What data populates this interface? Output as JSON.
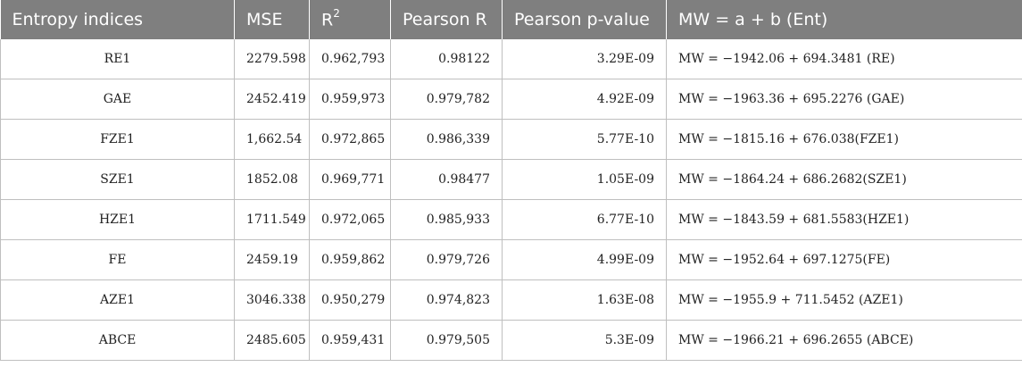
{
  "table": {
    "headers": {
      "entropy": "Entropy indices",
      "mse": "MSE",
      "r2_base": "R",
      "r2_sup": "2",
      "pearson_r": "Pearson R",
      "pearson_p": "Pearson p-value",
      "model": "MW = a + b (Ent)"
    },
    "rows": [
      {
        "entropy": "RE1",
        "mse": "2279.598",
        "r2": "0.962,793",
        "pearson_r": "0.98122",
        "pearson_p": "3.29E-09",
        "model": "MW = −1942.06 + 694.3481 (RE)"
      },
      {
        "entropy": "GAE",
        "mse": "2452.419",
        "r2": "0.959,973",
        "pearson_r": "0.979,782",
        "pearson_p": "4.92E-09",
        "model": "MW = −1963.36 + 695.2276 (GAE)"
      },
      {
        "entropy": "FZE1",
        "mse": "1,662.54",
        "r2": "0.972,865",
        "pearson_r": "0.986,339",
        "pearson_p": "5.77E-10",
        "model": "MW = −1815.16 + 676.038(FZE1)"
      },
      {
        "entropy": "SZE1",
        "mse": "1852.08",
        "r2": "0.969,771",
        "pearson_r": "0.98477",
        "pearson_p": "1.05E-09",
        "model": "MW = −1864.24 + 686.2682(SZE1)"
      },
      {
        "entropy": "HZE1",
        "mse": "1711.549",
        "r2": "0.972,065",
        "pearson_r": "0.985,933",
        "pearson_p": "6.77E-10",
        "model": "MW = −1843.59 + 681.5583(HZE1)"
      },
      {
        "entropy": "FE",
        "mse": "2459.19",
        "r2": "0.959,862",
        "pearson_r": "0.979,726",
        "pearson_p": "4.99E-09",
        "model": "MW = −1952.64 + 697.1275(FE)"
      },
      {
        "entropy": "AZE1",
        "mse": "3046.338",
        "r2": "0.950,279",
        "pearson_r": "0.974,823",
        "pearson_p": "1.63E-08",
        "model": "MW = −1955.9 + 711.5452 (AZE1)"
      },
      {
        "entropy": "ABCE",
        "mse": "2485.605",
        "r2": "0.959,431",
        "pearson_r": "0.979,505",
        "pearson_p": "5.3E-09",
        "model": "MW = −1966.21 + 696.2655 (ABCE)"
      }
    ]
  }
}
